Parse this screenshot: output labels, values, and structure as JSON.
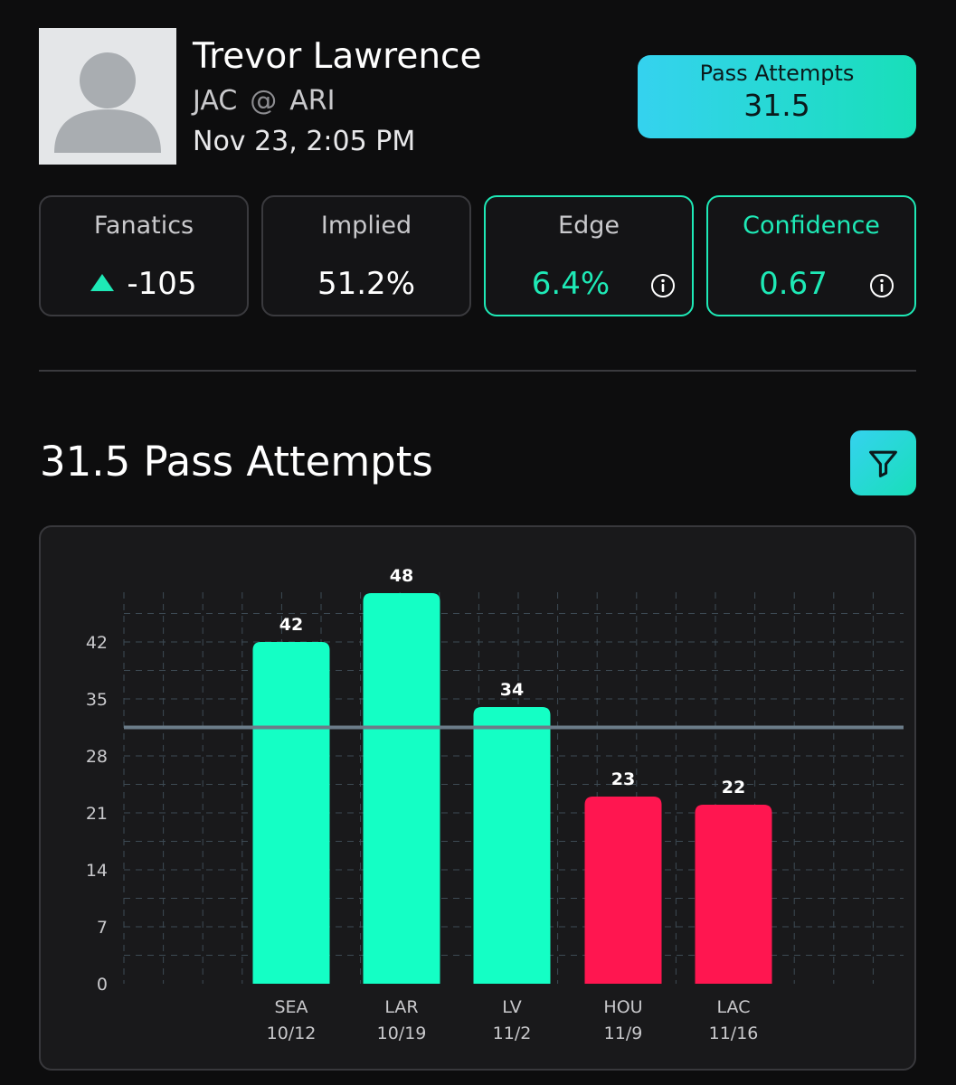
{
  "player": {
    "name": "Trevor Lawrence",
    "team": "JAC",
    "at_symbol": "@",
    "opponent": "ARI",
    "game_time": "Nov 23, 2:05 PM"
  },
  "prop": {
    "label": "Pass Attempts",
    "line": "31.5"
  },
  "stats": {
    "fanatics": {
      "label": "Fanatics",
      "odds": "-105"
    },
    "implied": {
      "label": "Implied",
      "value": "51.2%"
    },
    "edge": {
      "label": "Edge",
      "value": "6.4%"
    },
    "confidence": {
      "label": "Confidence",
      "value": "0.67"
    }
  },
  "section": {
    "title": "31.5 Pass Attempts"
  },
  "colors": {
    "accent": "#1ee9b6",
    "over": "#14ffc5",
    "under": "#ff1650",
    "line": "#6b7c89"
  },
  "icons": {
    "avatar": "person-silhouette-icon",
    "trend": "triangle-up-icon",
    "info": "info-circle-icon",
    "filter": "filter-funnel-icon"
  },
  "chart_data": {
    "type": "bar",
    "categories": [
      "SEA",
      "LAR",
      "LV",
      "HOU",
      "LAC"
    ],
    "dates": [
      "10/12",
      "10/19",
      "11/2",
      "11/9",
      "11/16"
    ],
    "values": [
      42,
      48,
      34,
      23,
      22
    ],
    "reference_line": 31.5,
    "yticks": [
      0,
      7,
      14,
      21,
      28,
      35,
      42
    ],
    "ylim": [
      0,
      50
    ],
    "grid": true,
    "data_labels": true,
    "bar_colors": [
      "#14ffc5",
      "#14ffc5",
      "#14ffc5",
      "#ff1650",
      "#ff1650"
    ]
  }
}
